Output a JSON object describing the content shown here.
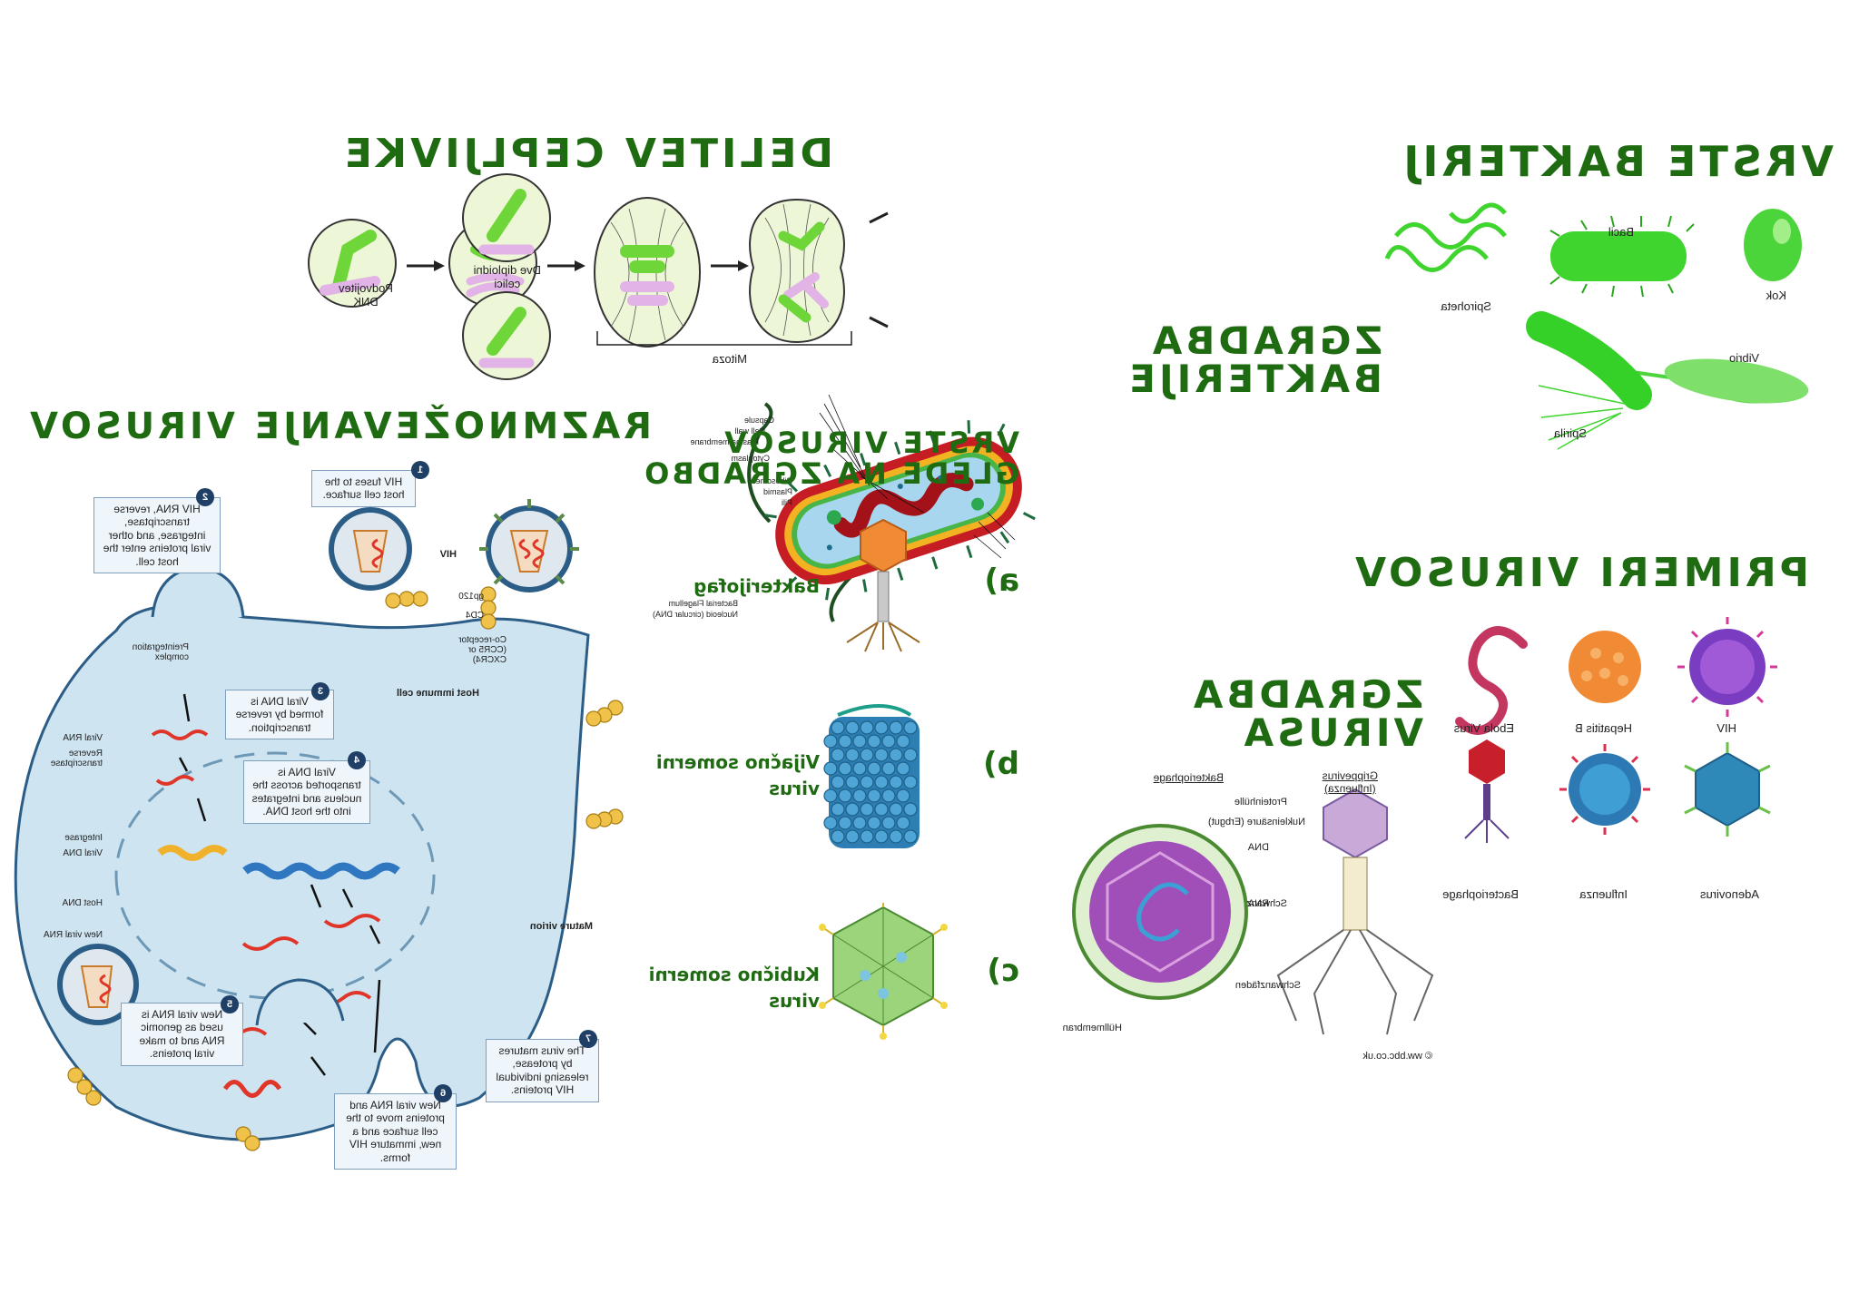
{
  "headings": {
    "delitev": "DELITEV CEPLJIVKE",
    "vrste_bakterij": "VRSTE BAKTERIJ",
    "zgradba_bakterije": [
      "ZGRADBA",
      "BAKTERIJE"
    ],
    "razmnozevanje": "RAZMNOŽEVANJE VIRUSOV",
    "vrste_virusov": [
      "VRSTE VIRUSOV",
      "GLEDE NA ZGRADBO"
    ],
    "primeri": "PRIMERI VIRUSOV",
    "zgradba_virusa": [
      "ZGRADBA",
      "VIRUSA"
    ]
  },
  "mitosis": {
    "label_dna": [
      "Podvojitev",
      "DNK"
    ],
    "label_cells": [
      "Dve diploidni",
      "celici"
    ],
    "label_mitoza": "Mitoza"
  },
  "bacteria_types": [
    "Kok",
    "Bacil",
    "Spiroheta",
    "Vibrio",
    "Spirila"
  ],
  "bacterium_parts": {
    "top": [
      "Capsule",
      "Cell wall",
      "Plasma membrane",
      "Cytoplasm",
      "Ribosomes",
      "Plasmid",
      "Pili"
    ],
    "bottom": [
      "Bacterial Flagellum",
      "Nucleoid (circular DNA)"
    ]
  },
  "virus_structure_types": [
    {
      "letter": "a)",
      "lines": [
        "Bakterijofag"
      ]
    },
    {
      "letter": "b)",
      "lines": [
        "Vijačno somerni",
        "virus"
      ]
    },
    {
      "letter": "c)",
      "lines": [
        "Kubično somerni",
        "virus"
      ]
    }
  ],
  "virus_examples": [
    "HIV",
    "Hepatitis B",
    "Ebola  Virus",
    "Adenovirus",
    "Influenza",
    "Bacteriophage"
  ],
  "virus_anatomy": {
    "phage_title": "Bakteriophage",
    "flu_title": [
      "Grippevirus",
      "(Influenza)"
    ],
    "labels": [
      "Proteinhülle",
      "Nukleinsäure (Erbgut)",
      "DNA",
      "RNA",
      "Schwanz",
      "Schwanzfäden",
      "Hüllmembran"
    ],
    "copyright": "© ww.bbc.co.uk"
  },
  "hiv_cycle": {
    "steps": [
      {
        "n": "1",
        "text": "HIV fuses to the host cell surface."
      },
      {
        "n": "2",
        "text": "HIV RNA, reverse transcriptase, integrase, and other viral proteins enter the host cell."
      },
      {
        "n": "3",
        "text": "Viral DNA is formed by reverse transcription."
      },
      {
        "n": "4",
        "text": "Viral DNA is transported across the nucleus and integrates into the host DNA."
      },
      {
        "n": "5",
        "text": "New viral RNA is used as genomic RNA and to make viral proteins."
      },
      {
        "n": "6",
        "text": "New viral RNA and proteins move to the cell surface and a new, immature HIV forms."
      },
      {
        "n": "7",
        "text": "The virus matures by protease, releasing individual HIV proteins."
      }
    ],
    "labels": {
      "hiv": "HIV",
      "gp120": "gp120",
      "cd4": "CD4",
      "coreceptor": "Co-receptor (CCR5 or CXCR4)",
      "host": "Host immune cell",
      "preintegration": "Preintegration complex",
      "viral_rna": "Viral RNA",
      "reverse_transcriptase": "Reverse transcriptase",
      "integrase": "Integrase",
      "viral_dna": "Viral DNA",
      "host_dna": "Host DNA",
      "new_viral_rna": "New viral RNA",
      "mature_virion": "Mature virion"
    }
  }
}
